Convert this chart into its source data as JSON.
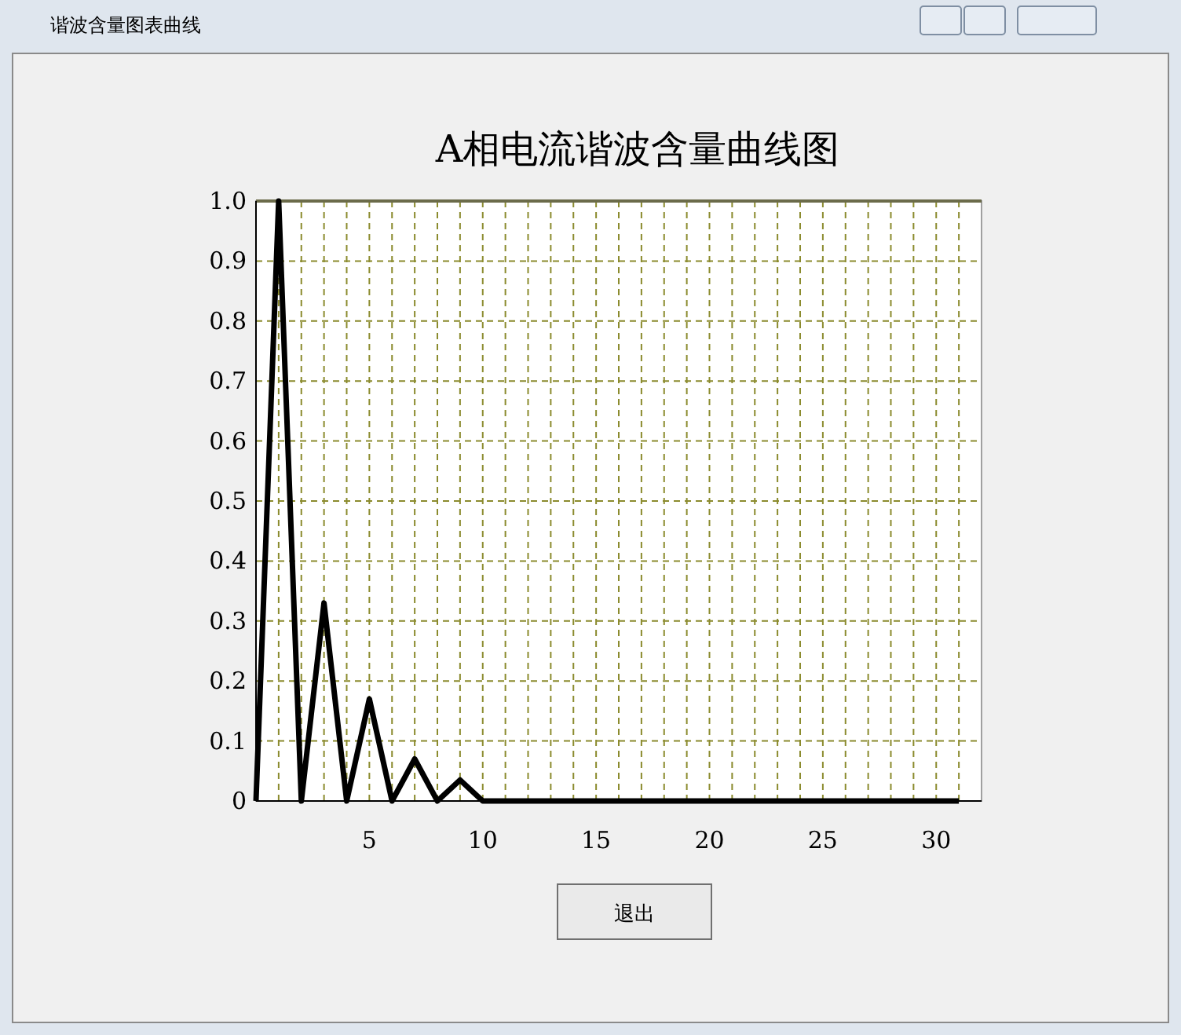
{
  "chart_data": {
    "type": "line",
    "title": "A相电流谐波含量曲线图",
    "annotations": [
      "谐波含量图表曲线",
      "退出"
    ],
    "x": [
      0,
      1,
      2,
      3,
      4,
      5,
      6,
      7,
      8,
      9,
      10,
      11,
      12,
      13,
      14,
      15,
      16,
      17,
      18,
      19,
      20,
      21,
      22,
      23,
      24,
      25,
      26,
      27,
      28,
      29,
      30,
      31
    ],
    "series": [
      {
        "color": "#000000",
        "values": [
          0,
          1.0,
          0,
          0.33,
          0,
          0.17,
          0,
          0.07,
          0,
          0.035,
          0,
          0,
          0,
          0,
          0,
          0,
          0,
          0,
          0,
          0,
          0,
          0,
          0,
          0,
          0,
          0,
          0,
          0,
          0,
          0,
          0,
          0
        ]
      }
    ],
    "xlim": [
      0,
      32
    ],
    "xticks": [
      {
        "value": 1,
        "label": null
      },
      {
        "value": 2,
        "label": null
      },
      {
        "value": 3,
        "label": null
      },
      {
        "value": 4,
        "label": null
      },
      5,
      {
        "value": 6,
        "label": null
      },
      {
        "value": 7,
        "label": null
      },
      {
        "value": 8,
        "label": null
      },
      {
        "value": 9,
        "label": null
      },
      10,
      {
        "value": 11,
        "label": null
      },
      {
        "value": 12,
        "label": null
      },
      {
        "value": 13,
        "label": null
      },
      {
        "value": 14,
        "label": null
      },
      15,
      {
        "value": 16,
        "label": null
      },
      {
        "value": 17,
        "label": null
      },
      {
        "value": 18,
        "label": null
      },
      {
        "value": 19,
        "label": null
      },
      20,
      {
        "value": 21,
        "label": null
      },
      {
        "value": 22,
        "label": null
      },
      {
        "value": 23,
        "label": null
      },
      {
        "value": 24,
        "label": null
      },
      25,
      {
        "value": 26,
        "label": null
      },
      {
        "value": 27,
        "label": null
      },
      {
        "value": 28,
        "label": null
      },
      {
        "value": 29,
        "label": null
      },
      30,
      {
        "value": 31,
        "label": null
      }
    ],
    "ylim": [
      0,
      1
    ],
    "yticks": [
      0,
      0.1,
      0.2,
      0.3,
      0.4,
      0.5,
      0.6,
      0.7,
      0.8,
      0.9,
      {
        "value": 1,
        "label": "1.0"
      }
    ],
    "grid": true,
    "marker": "none",
    "line_style": "solid"
  }
}
